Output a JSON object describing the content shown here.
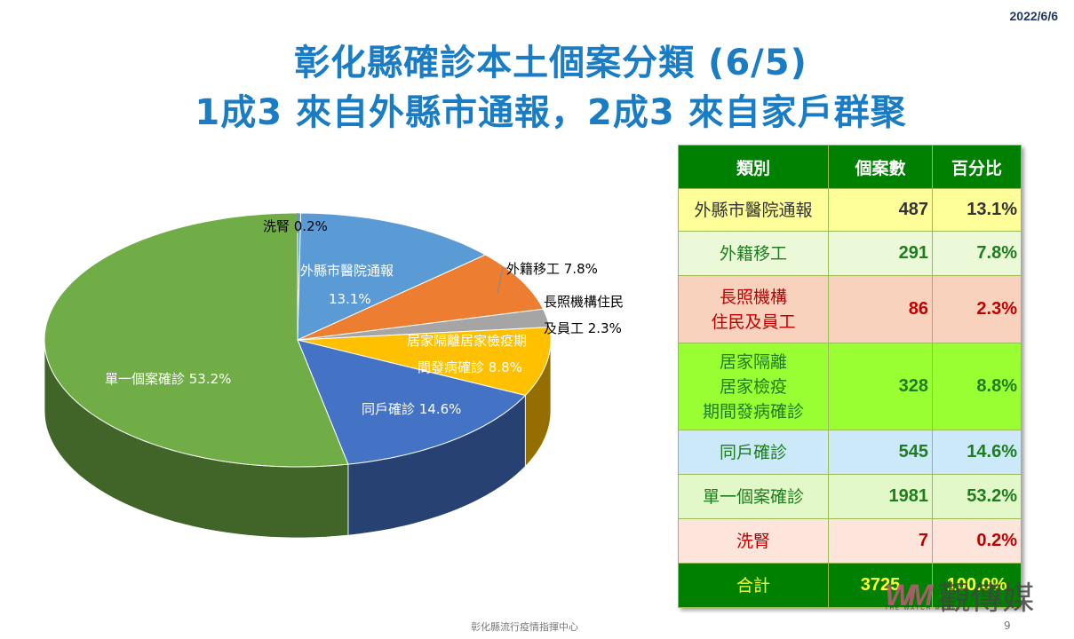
{
  "header": {
    "date": "2022/6/6",
    "title_line1": "彰化縣確診本土個案分類 (6/5)",
    "title_line2": "1成3 來自外縣市通報，2成3 來自家戶群聚"
  },
  "chart_data": {
    "type": "pie",
    "style": "3d",
    "title": "彰化縣確診本土個案分類 (6/5)",
    "categories": [
      "洗腎",
      "外縣市醫院通報",
      "外籍移工",
      "長照機構住民及員工",
      "居家隔離居家檢疫期間發病確診",
      "同戶確診",
      "單一個案確診"
    ],
    "values": [
      0.2,
      13.1,
      7.8,
      2.3,
      8.8,
      14.6,
      53.2
    ],
    "counts": [
      7,
      487,
      291,
      86,
      328,
      545,
      1981
    ],
    "colors": [
      "#5b9bd5",
      "#5b9bd5",
      "#ed7d31",
      "#a5a5a5",
      "#ffc000",
      "#4472c4",
      "#70ad47"
    ],
    "labels": [
      {
        "lines": [
          "洗腎 0.2%"
        ]
      },
      {
        "lines": [
          "外縣市醫院通報",
          "13.1%"
        ]
      },
      {
        "lines": [
          "外籍移工 7.8%"
        ]
      },
      {
        "lines": [
          "長照機構住民",
          "及員工 2.3%"
        ]
      },
      {
        "lines": [
          "居家隔離居家檢疫期",
          "間發病確診 8.8%"
        ]
      },
      {
        "lines": [
          "同戶確診 14.6%"
        ]
      },
      {
        "lines": [
          "單一個案確診 53.2%"
        ]
      }
    ],
    "unit": "%"
  },
  "table": {
    "headers": [
      "類別",
      "個案數",
      "百分比"
    ],
    "rows": [
      {
        "category": "外縣市醫院通報",
        "count": "487",
        "percent": "13.1%",
        "bg": "#ffff99",
        "color": "#333333"
      },
      {
        "category": "外籍移工",
        "count": "291",
        "percent": "7.8%",
        "bg": "#ebf9d8",
        "color": "#1e7d1e"
      },
      {
        "category": "長照機構\n住民及員工",
        "count": "86",
        "percent": "2.3%",
        "bg": "#f8d2bd",
        "color": "#c00000"
      },
      {
        "category": "居家隔離\n居家檢疫\n期間發病確診",
        "count": "328",
        "percent": "8.8%",
        "bg": "#99ff33",
        "color": "#1e7d1e"
      },
      {
        "category": "同戶確診",
        "count": "545",
        "percent": "14.6%",
        "bg": "#cce9f9",
        "color": "#1e7d1e"
      },
      {
        "category": "單一個案確診",
        "count": "1981",
        "percent": "53.2%",
        "bg": "#e3f8c8",
        "color": "#1e7d1e"
      },
      {
        "category": "洗腎",
        "count": "7",
        "percent": "0.2%",
        "bg": "#fde5dc",
        "color": "#c00000"
      }
    ],
    "total": {
      "category": "合計",
      "count": "3725",
      "percent": "100.0%",
      "bg": "#008000",
      "color": "#ffff33"
    }
  },
  "footer": {
    "organization": "彰化縣流行疫情指揮中心",
    "page_number": "9"
  },
  "watermark": {
    "logo": "WM",
    "text": "觀傳媒",
    "subtitle": "THE WATCH MEDIA"
  }
}
